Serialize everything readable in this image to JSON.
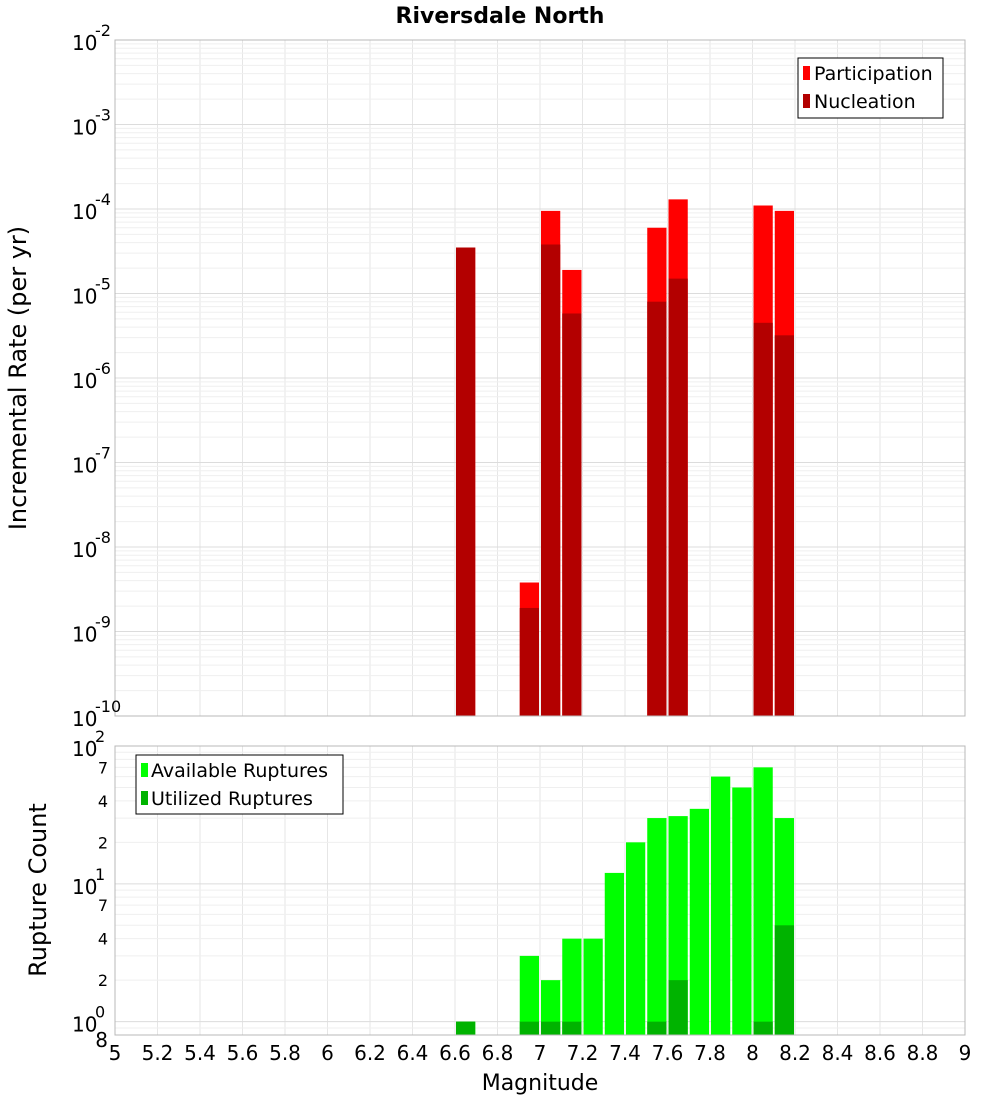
{
  "chart_data": [
    {
      "type": "bar",
      "title": "Riversdale North",
      "xlabel": "",
      "ylabel": "Incremental Rate (per yr)",
      "yscale": "log",
      "xlim": [
        5,
        9
      ],
      "ylim": [
        1e-10,
        0.01
      ],
      "y_tick_bases": [
        "10",
        "10",
        "10",
        "10",
        "10",
        "10",
        "10",
        "10",
        "10"
      ],
      "y_tick_exponents": [
        "-10",
        "-9",
        "-8",
        "-7",
        "-6",
        "-5",
        "-4",
        "-3",
        "-2"
      ],
      "grid": true,
      "legend_position": "top-right",
      "series": [
        {
          "name": "Participation",
          "color": "#ff0000",
          "x": [
            6.65,
            6.95,
            7.05,
            7.15,
            7.55,
            7.65,
            8.05,
            8.15
          ],
          "values": [
            3.5e-05,
            3.8e-09,
            9.5e-05,
            1.9e-05,
            6e-05,
            0.00013,
            0.00011,
            9.5e-05
          ]
        },
        {
          "name": "Nucleation",
          "color": "#b30000",
          "x": [
            6.65,
            6.95,
            7.05,
            7.15,
            7.55,
            7.65,
            8.05,
            8.15
          ],
          "values": [
            3.5e-05,
            1.9e-09,
            3.8e-05,
            5.8e-06,
            8e-06,
            1.5e-05,
            4.5e-06,
            3.2e-06
          ]
        }
      ]
    },
    {
      "type": "bar",
      "title": "",
      "xlabel": "Magnitude",
      "ylabel": "Rupture Count",
      "yscale": "log",
      "xlim": [
        5,
        9
      ],
      "ylim": [
        0.8,
        100
      ],
      "x_ticks": [
        "5",
        "5.2",
        "5.4",
        "5.6",
        "5.8",
        "6",
        "6.2",
        "6.4",
        "6.6",
        "6.8",
        "7",
        "7.2",
        "7.4",
        "7.6",
        "7.8",
        "8",
        "8.2",
        "8.4",
        "8.6",
        "8.8",
        "9"
      ],
      "y_major_bases": [
        "10",
        "10",
        "10"
      ],
      "y_major_exponents": [
        "0",
        "1",
        "2"
      ],
      "y_minor_labels": [
        "8",
        "2",
        "4",
        "7",
        "2",
        "4",
        "7"
      ],
      "grid": true,
      "legend_position": "top-left",
      "series": [
        {
          "name": "Available Ruptures",
          "color": "#00ff00",
          "x": [
            6.65,
            6.95,
            7.05,
            7.15,
            7.25,
            7.35,
            7.45,
            7.55,
            7.65,
            7.75,
            7.85,
            7.95,
            8.05,
            8.15
          ],
          "values": [
            1,
            3,
            2,
            4,
            4,
            12,
            20,
            30,
            31,
            35,
            60,
            50,
            70,
            30
          ]
        },
        {
          "name": "Utilized Ruptures",
          "color": "#00b300",
          "x": [
            6.65,
            6.95,
            7.05,
            7.15,
            7.55,
            7.65,
            8.05,
            8.15
          ],
          "values": [
            1,
            1,
            1,
            1,
            1,
            2,
            1,
            5
          ]
        }
      ]
    }
  ]
}
